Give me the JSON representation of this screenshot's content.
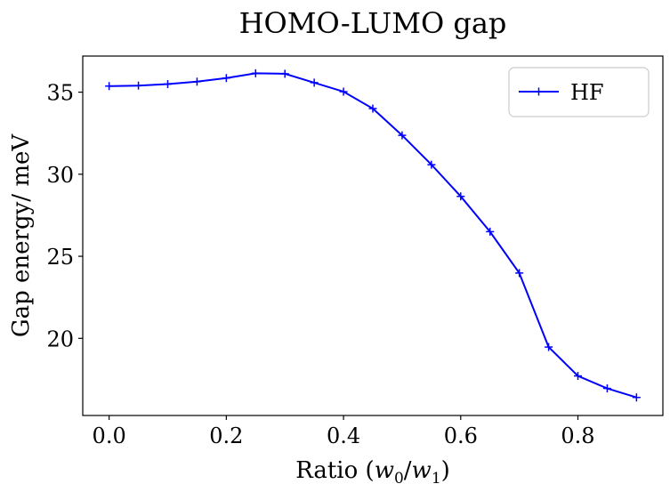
{
  "chart_data": {
    "type": "line",
    "title": "HOMO-LUMO gap",
    "xlabel": "Ratio (w0/w1)",
    "ylabel": "Gap energy/ meV",
    "xlim": [
      -0.045,
      0.945
    ],
    "ylim": [
      15.3,
      37.2
    ],
    "x_ticks": [
      0.0,
      0.2,
      0.4,
      0.6,
      0.8
    ],
    "y_ticks": [
      20,
      25,
      30,
      35
    ],
    "x_tick_labels": [
      "0.0",
      "0.2",
      "0.4",
      "0.6",
      "0.8"
    ],
    "y_tick_labels": [
      "20",
      "25",
      "30",
      "35"
    ],
    "grid": false,
    "legend_position": "top-right",
    "series": [
      {
        "name": "HF",
        "color": "#0000ff",
        "marker": "plus",
        "x": [
          0.0,
          0.05,
          0.1,
          0.15,
          0.2,
          0.25,
          0.3,
          0.35,
          0.4,
          0.45,
          0.5,
          0.55,
          0.6,
          0.65,
          0.7,
          0.75,
          0.8,
          0.85,
          0.9
        ],
        "values": [
          35.37,
          35.4,
          35.49,
          35.64,
          35.86,
          36.15,
          36.12,
          35.58,
          35.03,
          34.0,
          32.37,
          30.58,
          28.65,
          26.5,
          23.98,
          19.47,
          17.71,
          16.95,
          16.4
        ]
      }
    ]
  }
}
